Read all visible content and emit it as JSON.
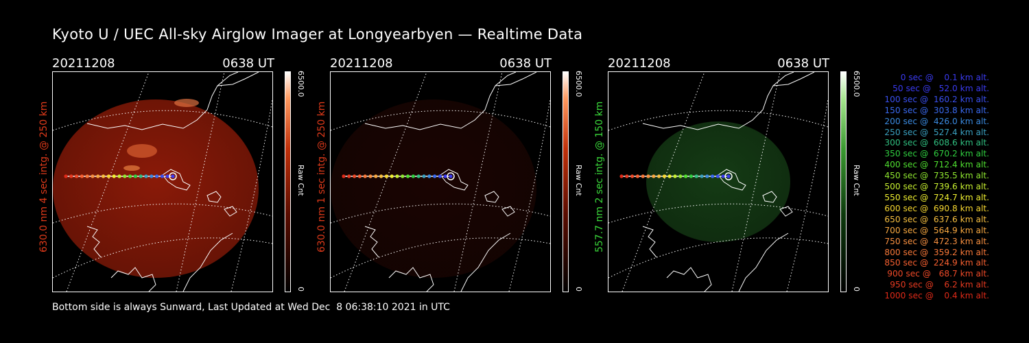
{
  "header": {
    "title": "Kyoto U / UEC All-sky Airglow Imager at Longyearbyen — Realtime Data"
  },
  "panels": [
    {
      "date": "20211208",
      "time": "0638 UT",
      "ylabel": "630.0 nm 4 sec intg. @ 250 km",
      "label_color": "#e03a1a",
      "cbar_max": "6500.0",
      "cbar_min": "0",
      "cbar_unit": "Raw Cnt",
      "sky_color": "#8a1a08",
      "brightness": 1.0
    },
    {
      "date": "20211208",
      "time": "0638 UT",
      "ylabel": "630.0 nm 1 sec intg. @ 250 km",
      "label_color": "#e03a1a",
      "cbar_max": "6500.0",
      "cbar_min": "0",
      "cbar_unit": "Raw Cnt",
      "sky_color": "#3a0a04",
      "brightness": 0.45
    },
    {
      "date": "20211208",
      "time": "0638 UT",
      "ylabel": "557.7 nm 2 sec intg. @ 150 km",
      "label_color": "#3ad83a",
      "cbar_max": "6500.0",
      "cbar_min": "0",
      "cbar_unit": "Raw Cnt",
      "sky_color": "#1a4a1a",
      "brightness": 0.8
    }
  ],
  "legend": [
    {
      "text": "0 sec @    0.1 km alt.",
      "color": "#3a3af0"
    },
    {
      "text": "50 sec @   52.0 km alt.",
      "color": "#3a3af0"
    },
    {
      "text": "100 sec @  160.2 km alt.",
      "color": "#3a50f0"
    },
    {
      "text": "150 sec @  303.8 km alt.",
      "color": "#3a6af0"
    },
    {
      "text": "200 sec @  426.0 km alt.",
      "color": "#3a8ae0"
    },
    {
      "text": "250 sec @  527.4 km alt.",
      "color": "#3aa0c0"
    },
    {
      "text": "300 sec @  608.6 km alt.",
      "color": "#30c080"
    },
    {
      "text": "350 sec @  670.2 km alt.",
      "color": "#30d040"
    },
    {
      "text": "400 sec @  712.4 km alt.",
      "color": "#50e030"
    },
    {
      "text": "450 sec @  735.5 km alt.",
      "color": "#90e830"
    },
    {
      "text": "500 sec @  739.6 km alt.",
      "color": "#c8f030"
    },
    {
      "text": "550 sec @  724.7 km alt.",
      "color": "#f0f030"
    },
    {
      "text": "600 sec @  690.8 km alt.",
      "color": "#f8d830"
    },
    {
      "text": "650 sec @  637.6 km alt.",
      "color": "#f8c040"
    },
    {
      "text": "700 sec @  564.9 km alt.",
      "color": "#f8a840"
    },
    {
      "text": "750 sec @  472.3 km alt.",
      "color": "#f89040"
    },
    {
      "text": "800 sec @  359.2 km alt.",
      "color": "#f87838"
    },
    {
      "text": "850 sec @  224.9 km alt.",
      "color": "#f86030"
    },
    {
      "text": "900 sec @   68.7 km alt.",
      "color": "#f04a28"
    },
    {
      "text": "950 sec @    6.2 km alt.",
      "color": "#e83a20"
    },
    {
      "text": "1000 sec @    0.4 km alt.",
      "color": "#e02a18"
    }
  ],
  "footer": {
    "text": "Bottom side is always Sunward, Last Updated at Wed Dec  8 06:38:10 2021 in UTC"
  }
}
